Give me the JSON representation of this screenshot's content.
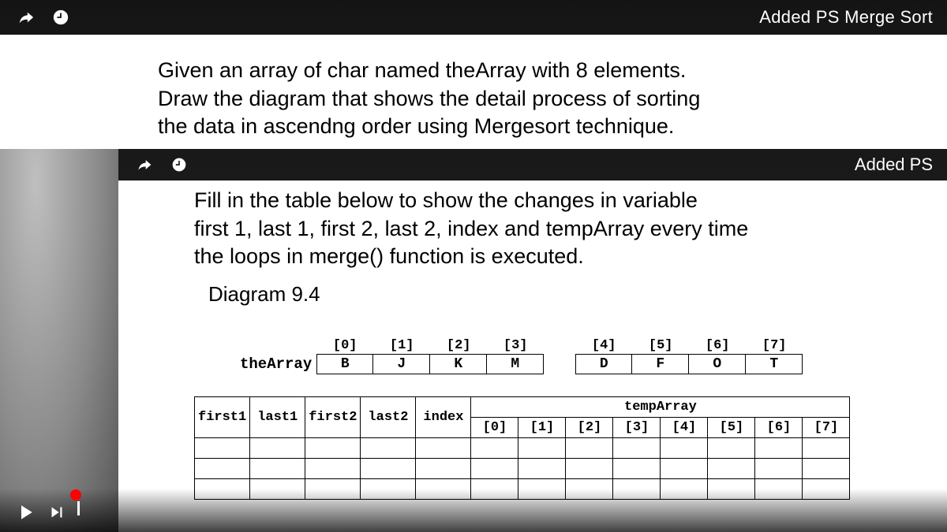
{
  "top_bar": {
    "title": "Added PS Merge Sort",
    "title_truncated": "Added PS"
  },
  "page1": {
    "text_l1": "Given an array of char named theArray with 8 elements.",
    "text_l2": "Draw the diagram that shows the detail process of sorting",
    "text_l3": "the data in ascendng order using Mergesort technique."
  },
  "page2": {
    "text_l1": "Fill in the table below to show the changes in variable",
    "text_l2": "first 1, last 1, first 2, last 2, index and tempArray every time",
    "text_l3": "the loops in merge() function is executed.",
    "diagram_label": "Diagram 9.4",
    "thearray": {
      "label": "theArray",
      "indices_left": [
        "[0]",
        "[1]",
        "[2]",
        "[3]"
      ],
      "values_left": [
        "B",
        "J",
        "K",
        "M"
      ],
      "indices_right": [
        "[4]",
        "[5]",
        "[6]",
        "[7]"
      ],
      "values_right": [
        "D",
        "F",
        "O",
        "T"
      ]
    },
    "track_table": {
      "main_headers": [
        "first1",
        "last1",
        "first2",
        "last2",
        "index"
      ],
      "temp_header": "tempArray",
      "temp_indices": [
        "[0]",
        "[1]",
        "[2]",
        "[3]",
        "[4]",
        "[5]",
        "[6]",
        "[7]"
      ]
    }
  },
  "player": {
    "progress_pct": 8
  }
}
